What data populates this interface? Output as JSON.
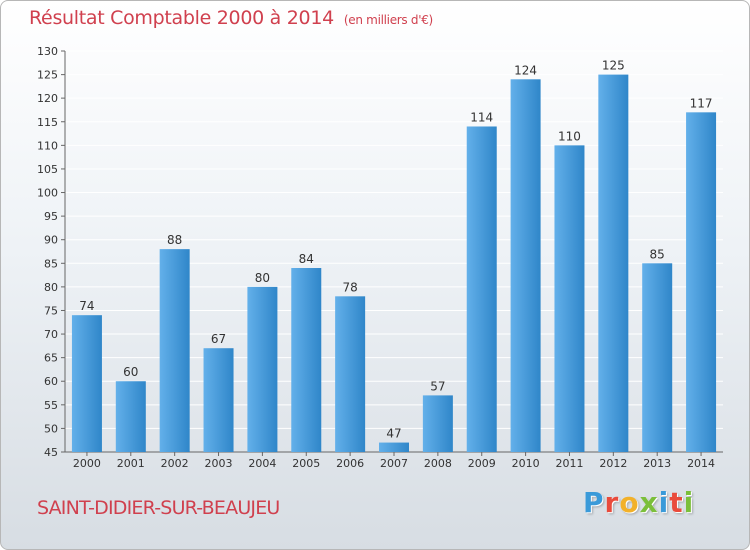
{
  "header": {
    "title": "Résultat Comptable 2000 à 2014",
    "unit": "(en milliers d'€)"
  },
  "footer": {
    "commune": "SAINT-DIDIER-SUR-BEAUJEU"
  },
  "logo": {
    "letters": [
      {
        "char": "P",
        "color": "#3a9ad9"
      },
      {
        "char": "r",
        "color": "#e94b3c"
      },
      {
        "char": "o",
        "color": "#f2b12a"
      },
      {
        "char": "x",
        "color": "#7bbf3a"
      },
      {
        "char": "i",
        "color": "#3a9ad9"
      },
      {
        "char": "t",
        "color": "#e94b3c"
      },
      {
        "char": "i",
        "color": "#7bbf3a"
      }
    ]
  },
  "colors": {
    "title": "#d0404e",
    "bar_light": "#63b0ea",
    "bar_dark": "#2f86c9",
    "axis_text": "#333333",
    "gridline": "#ffffff"
  },
  "chart_data": {
    "type": "bar",
    "title": "Résultat Comptable 2000 à 2014",
    "categories": [
      "2000",
      "2001",
      "2002",
      "2003",
      "2004",
      "2005",
      "2006",
      "2007",
      "2008",
      "2009",
      "2010",
      "2011",
      "2012",
      "2013",
      "2014"
    ],
    "values": [
      74,
      60,
      88,
      67,
      80,
      84,
      78,
      47,
      57,
      114,
      124,
      110,
      125,
      85,
      117
    ],
    "ylim": [
      45,
      130
    ],
    "yticks": [
      45,
      50,
      55,
      60,
      65,
      70,
      75,
      80,
      85,
      90,
      95,
      100,
      105,
      110,
      115,
      120,
      125,
      130
    ],
    "grid": true,
    "xlabel": "",
    "ylabel": ""
  }
}
